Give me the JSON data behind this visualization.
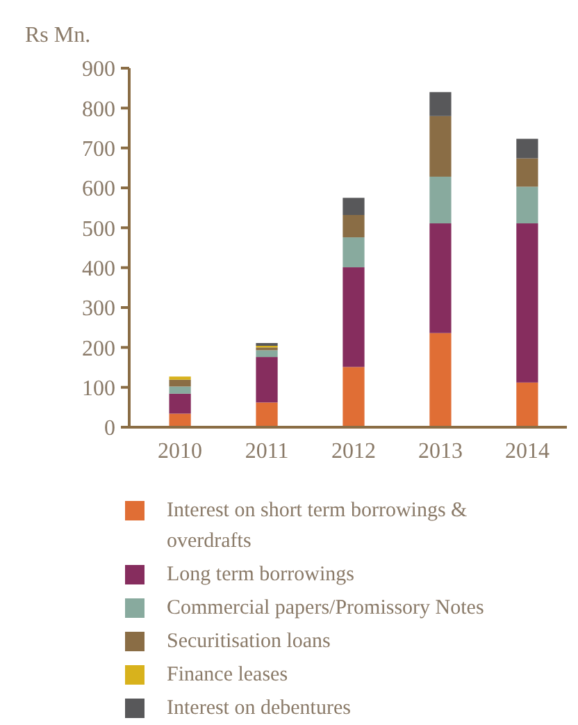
{
  "chart_data": {
    "type": "bar",
    "stacked": true,
    "ylabel": "Rs Mn.",
    "categories": [
      "2010",
      "2011",
      "2012",
      "2013",
      "2014"
    ],
    "ylim": [
      0,
      900
    ],
    "yticks": [
      0,
      100,
      200,
      300,
      400,
      500,
      600,
      700,
      800,
      900
    ],
    "grid": false,
    "legend": "bottom",
    "series": [
      {
        "name": "Interest on short term borrowings & overdrafts",
        "color": "#e06e35",
        "values": [
          34,
          62,
          151,
          236,
          112
        ]
      },
      {
        "name": "Long term borrowings",
        "color": "#862d5e",
        "values": [
          50,
          114,
          250,
          275,
          399
        ]
      },
      {
        "name": "Commercial papers/Promissory Notes",
        "color": "#88aa9e",
        "values": [
          18,
          17,
          75,
          117,
          92
        ]
      },
      {
        "name": "Securitisation loans",
        "color": "#8a6d45",
        "values": [
          17,
          7,
          56,
          152,
          71
        ]
      },
      {
        "name": "Finance leases",
        "color": "#d8b21c",
        "values": [
          8,
          4,
          0,
          0,
          0
        ]
      },
      {
        "name": "Interest on debentures",
        "color": "#58585a",
        "values": [
          0,
          7,
          43,
          60,
          49
        ]
      }
    ]
  }
}
